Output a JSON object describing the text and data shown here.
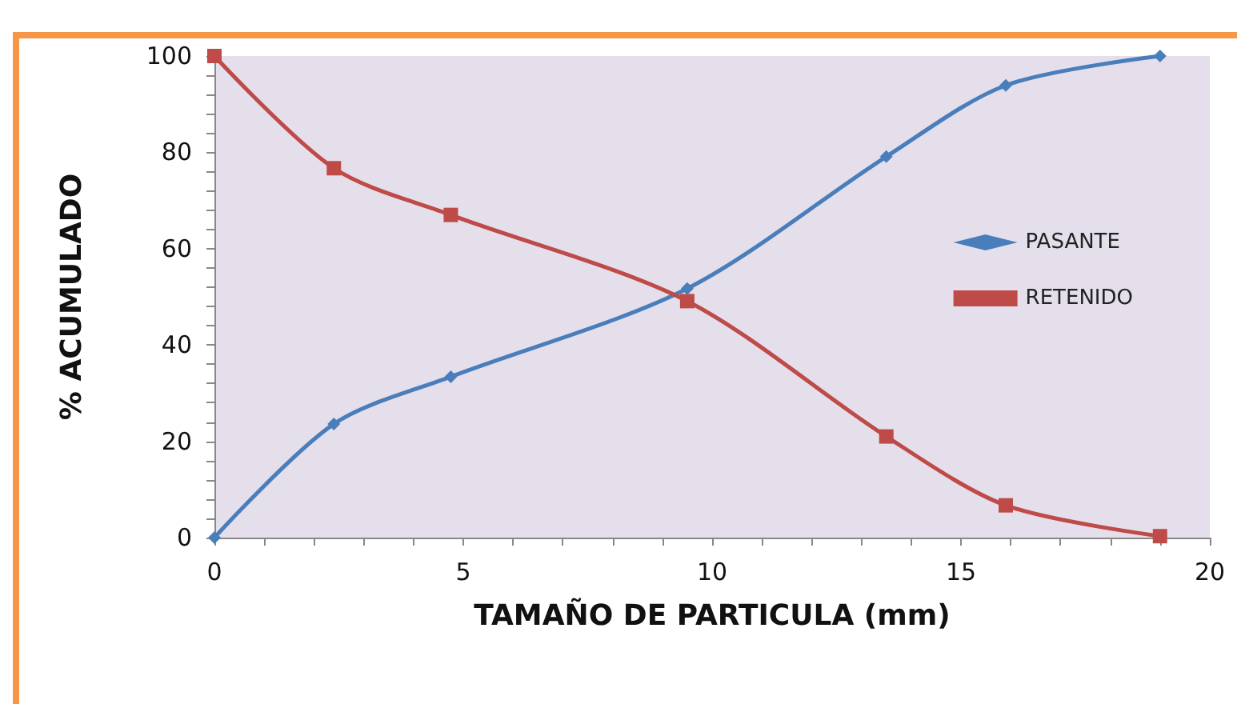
{
  "chart_data": {
    "type": "line",
    "xlabel": "TAMAÑO DE PARTICULA (mm)",
    "ylabel": "% ACUMULADO",
    "x": [
      0,
      2.4,
      4.75,
      9.5,
      13.5,
      15.9,
      19
    ],
    "xlim": [
      0,
      20
    ],
    "xticks": [
      0,
      5,
      10,
      15,
      20
    ],
    "ylim": [
      0,
      100
    ],
    "yticks": [
      0,
      20,
      40,
      60,
      80,
      100
    ],
    "grid": false,
    "legend": "right",
    "series": [
      {
        "name": "PASANTE",
        "color": "#4a7ebb",
        "marker": "diamond",
        "values": [
          0,
          23.6,
          33.4,
          51.7,
          79.1,
          93.9,
          100
        ]
      },
      {
        "name": "RETENIDO",
        "color": "#be4b48",
        "marker": "square",
        "values": [
          100,
          76.7,
          67,
          49.1,
          21,
          6.7,
          0.3
        ]
      }
    ]
  }
}
